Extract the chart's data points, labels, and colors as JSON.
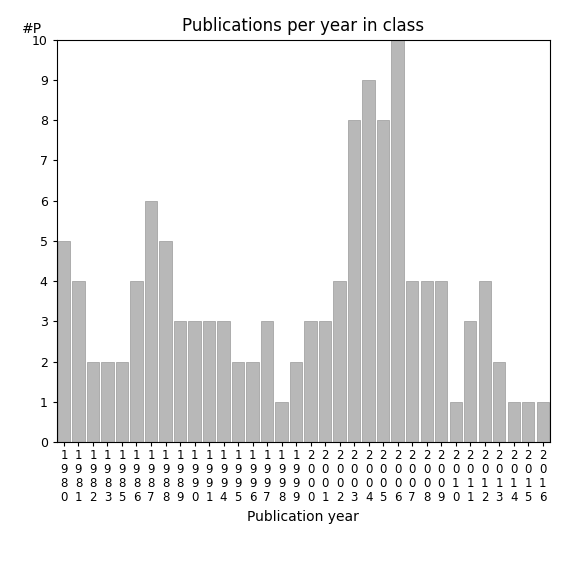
{
  "title": "Publications per year in class",
  "xlabel": "Publication year",
  "ylabel": "#P",
  "bar_color": "#b8b8b8",
  "bar_edge_color": "#999999",
  "categories": [
    "1980",
    "1981",
    "1982",
    "1983",
    "1985",
    "1986",
    "1987",
    "1988",
    "1989",
    "1990",
    "1991",
    "1994",
    "1995",
    "1996",
    "1997",
    "1998",
    "1999",
    "2000",
    "2001",
    "2002",
    "2003",
    "2004",
    "2005",
    "2006",
    "2007",
    "2008",
    "2009",
    "2010",
    "2011",
    "2012",
    "2013",
    "2014",
    "2015",
    "2016"
  ],
  "values": [
    5,
    4,
    2,
    2,
    2,
    4,
    6,
    5,
    3,
    3,
    3,
    3,
    2,
    2,
    3,
    1,
    2,
    3,
    3,
    4,
    8,
    9,
    8,
    10,
    4,
    4,
    4,
    1,
    3,
    4,
    2,
    1,
    1,
    1
  ],
  "ylim": [
    0,
    10
  ],
  "yticks": [
    0,
    1,
    2,
    3,
    4,
    5,
    6,
    7,
    8,
    9,
    10
  ],
  "background_color": "#ffffff",
  "title_fontsize": 12,
  "axis_label_fontsize": 10,
  "tick_label_fontsize": 8.5,
  "ytick_fontsize": 9
}
